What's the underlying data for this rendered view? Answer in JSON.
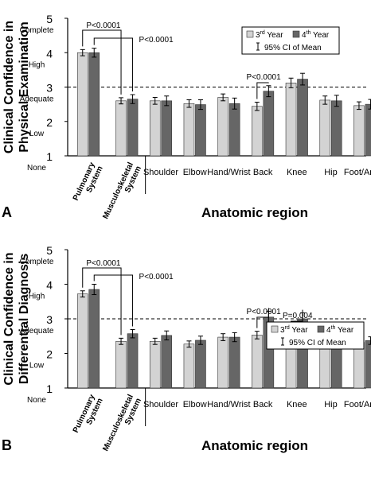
{
  "chart_data": [
    {
      "panel_letter": "A",
      "type": "bar",
      "ylabel_lines": [
        "Clinical Confidence in",
        "Physical Examination"
      ],
      "xlabel": "Anatomic region",
      "ylim": [
        1,
        5
      ],
      "ytick_values": [
        1,
        2,
        3,
        4,
        5
      ],
      "ytick_labels": [
        "1",
        "2",
        "3",
        "4",
        "5"
      ],
      "ytick_words": [
        "None",
        "Low",
        "Adequate",
        "High",
        "Complete"
      ],
      "reference_line": 3,
      "categories": [
        "Pulmonary\nSystem",
        "Musculoskeletal\nSystem",
        "Shoulder",
        "Elbow",
        "Hand/Wrist",
        "Back",
        "Knee",
        "Hip",
        "Foot/Ankle"
      ],
      "rotated_categories": [
        0,
        1
      ],
      "legend_position": "top-right",
      "series": [
        {
          "name": "3rd Year",
          "color": "#d3d3d3",
          "values": [
            4.0,
            2.6,
            2.6,
            2.52,
            2.7,
            2.44,
            3.12,
            2.62,
            2.46
          ],
          "ci": [
            0.09,
            0.09,
            0.1,
            0.11,
            0.1,
            0.12,
            0.14,
            0.12,
            0.11
          ]
        },
        {
          "name": "4th Year",
          "color": "#666666",
          "values": [
            4.0,
            2.65,
            2.6,
            2.49,
            2.52,
            2.88,
            3.23,
            2.6,
            2.5
          ],
          "ci": [
            0.13,
            0.13,
            0.14,
            0.14,
            0.16,
            0.16,
            0.17,
            0.16,
            0.14
          ]
        }
      ],
      "annotations": [
        {
          "text": "P<0.0001",
          "from_category": 0,
          "to_category": 1,
          "pair": "3rd"
        },
        {
          "text": "P<0.0001",
          "from_category": 0,
          "to_category": 1,
          "pair": "4th"
        },
        {
          "text": "P<0.0001",
          "category": 5,
          "pair": "within"
        }
      ]
    },
    {
      "panel_letter": "B",
      "type": "bar",
      "ylabel_lines": [
        "Clinical Confidence in",
        "Differential Diagnosis"
      ],
      "xlabel": "Anatomic region",
      "ylim": [
        1,
        5
      ],
      "ytick_values": [
        1,
        2,
        3,
        4,
        5
      ],
      "ytick_labels": [
        "1",
        "2",
        "3",
        "4",
        "5"
      ],
      "ytick_words": [
        "None",
        "Low",
        "Adequate",
        "High",
        "Complete"
      ],
      "reference_line": 3,
      "categories": [
        "Pulmonary\nSystem",
        "Musculoskeletal\nSystem",
        "Shoulder",
        "Elbow",
        "Hand/Wrist",
        "Back",
        "Knee",
        "Hip",
        "Foot/Ankle"
      ],
      "rotated_categories": [
        0,
        1
      ],
      "legend_position": "top-right",
      "series": [
        {
          "name": "3rd Year",
          "color": "#d3d3d3",
          "values": [
            3.72,
            2.35,
            2.35,
            2.27,
            2.47,
            2.53,
            2.67,
            2.35,
            2.32
          ],
          "ci": [
            0.09,
            0.09,
            0.09,
            0.09,
            0.1,
            0.11,
            0.11,
            0.09,
            0.09
          ]
        },
        {
          "name": "4th Year",
          "color": "#666666",
          "values": [
            3.85,
            2.57,
            2.52,
            2.38,
            2.47,
            3.05,
            3.0,
            2.5,
            2.37
          ],
          "ci": [
            0.15,
            0.12,
            0.13,
            0.12,
            0.13,
            0.17,
            0.17,
            0.14,
            0.11
          ]
        }
      ],
      "annotations": [
        {
          "text": "P<0.0001",
          "from_category": 0,
          "to_category": 1,
          "pair": "3rd"
        },
        {
          "text": "P<0.0001",
          "from_category": 0,
          "to_category": 1,
          "pair": "4th"
        },
        {
          "text": "P<0.0001",
          "category": 5,
          "pair": "within"
        },
        {
          "text": "P=0.004",
          "category": 6,
          "pair": "within"
        }
      ]
    }
  ],
  "legend": {
    "series1_label": "3",
    "series1_sup": "rd",
    "series2_label": "4",
    "series2_sup": "th",
    "year_word": "Year",
    "ci_label": "95% CI of Mean"
  }
}
